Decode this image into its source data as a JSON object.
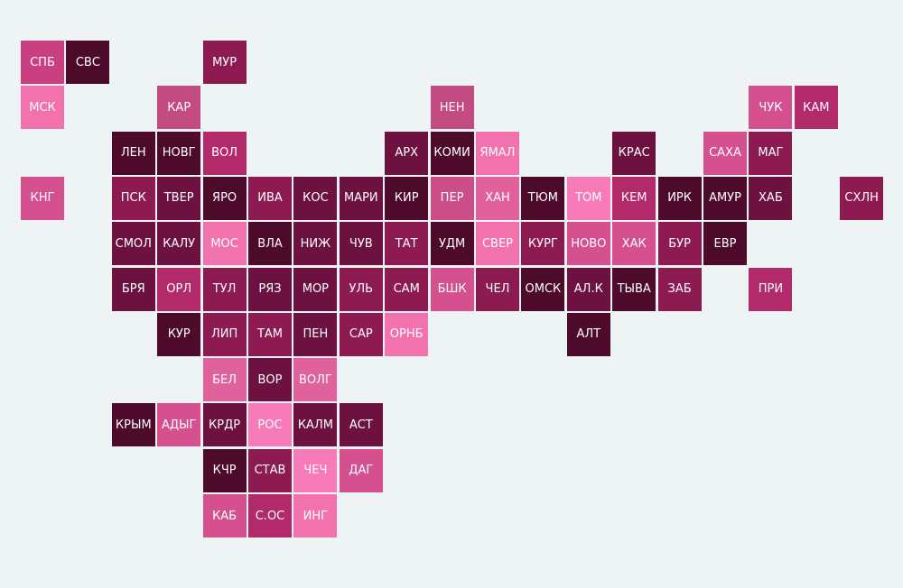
{
  "tile_map": {
    "rows": [
      [
        {
          "label": "СПБ",
          "color": "#c93f7f"
        },
        {
          "label": "СВС",
          "color": "#4d0a2a"
        },
        null,
        null,
        {
          "label": "МУР",
          "color": "#8e1a52"
        }
      ],
      [
        {
          "label": "МСК",
          "color": "#f272ae"
        },
        null,
        null,
        {
          "label": "КАР",
          "color": "#c44a82"
        },
        null,
        null,
        null,
        null,
        null,
        {
          "label": "НЕН",
          "color": "#c44a82"
        },
        null,
        null,
        null,
        null,
        null,
        null,
        {
          "label": "ЧУК",
          "color": "#d4508e"
        },
        {
          "label": "КАМ",
          "color": "#b22a6a"
        }
      ],
      [
        null,
        null,
        {
          "label": "ЛЕН",
          "color": "#4d0a2a"
        },
        {
          "label": "НОВГ",
          "color": "#4d0a2a"
        },
        {
          "label": "ВОЛ",
          "color": "#b22a6a"
        },
        null,
        null,
        null,
        {
          "label": "АРХ",
          "color": "#6d1240"
        },
        {
          "label": "КОМИ",
          "color": "#4d0a2a"
        },
        {
          "label": "ЯМАЛ",
          "color": "#f272ae"
        },
        null,
        null,
        {
          "label": "КРАС",
          "color": "#6d1240"
        },
        null,
        {
          "label": "САХА",
          "color": "#d4508e"
        },
        {
          "label": "МАГ",
          "color": "#8e1a52"
        }
      ],
      [
        {
          "label": "КНГ",
          "color": "#d4508e"
        },
        null,
        {
          "label": "ПСК",
          "color": "#8e1a52"
        },
        {
          "label": "ТВЕР",
          "color": "#6d1240"
        },
        {
          "label": "ЯРО",
          "color": "#4d0a2a"
        },
        {
          "label": "ИВА",
          "color": "#8e1a52"
        },
        {
          "label": "КОС",
          "color": "#6d1240"
        },
        {
          "label": "МАРИ",
          "color": "#6d1240"
        },
        {
          "label": "КИР",
          "color": "#4d0a2a"
        },
        {
          "label": "ПЕР",
          "color": "#cc4e88"
        },
        {
          "label": "ХАН",
          "color": "#e0619c"
        },
        {
          "label": "ТЮМ",
          "color": "#4d0a2a"
        },
        {
          "label": "ТОМ",
          "color": "#f77bb8"
        },
        {
          "label": "КЕМ",
          "color": "#b22a6a"
        },
        {
          "label": "ИРК",
          "color": "#4d0a2a"
        },
        {
          "label": "АМУР",
          "color": "#4d0a2a"
        },
        {
          "label": "ХАБ",
          "color": "#6d1240"
        },
        null,
        {
          "label": "СХЛН",
          "color": "#8e1a52"
        }
      ],
      [
        null,
        null,
        {
          "label": "СМОЛ",
          "color": "#6d1240"
        },
        {
          "label": "КАЛУ",
          "color": "#6d1240"
        },
        {
          "label": "МОС",
          "color": "#f272ae"
        },
        {
          "label": "ВЛА",
          "color": "#4d0a2a"
        },
        {
          "label": "НИЖ",
          "color": "#6d1240"
        },
        {
          "label": "ЧУВ",
          "color": "#6d1240"
        },
        {
          "label": "ТАТ",
          "color": "#8e1a52"
        },
        {
          "label": "УДМ",
          "color": "#4d0a2a"
        },
        {
          "label": "СВЕР",
          "color": "#f272ae"
        },
        {
          "label": "КУРГ",
          "color": "#8e1a52"
        },
        {
          "label": "НОВО",
          "color": "#d4508e"
        },
        {
          "label": "ХАК",
          "color": "#d4508e"
        },
        {
          "label": "БУР",
          "color": "#8e1a52"
        },
        {
          "label": "ЕВР",
          "color": "#4d0a2a"
        }
      ],
      [
        null,
        null,
        {
          "label": "БРЯ",
          "color": "#6d1240"
        },
        {
          "label": "ОРЛ",
          "color": "#b22a6a"
        },
        {
          "label": "ТУЛ",
          "color": "#8e1a52"
        },
        {
          "label": "РЯЗ",
          "color": "#6d1240"
        },
        {
          "label": "МОР",
          "color": "#6d1240"
        },
        {
          "label": "УЛЬ",
          "color": "#8e1a52"
        },
        {
          "label": "САМ",
          "color": "#8e1a52"
        },
        {
          "label": "БШК",
          "color": "#d4508e"
        },
        {
          "label": "ЧЕЛ",
          "color": "#8e1a52"
        },
        {
          "label": "ОМСК",
          "color": "#4d0a2a"
        },
        {
          "label": "АЛ.К",
          "color": "#6d1240"
        },
        {
          "label": "ТЫВА",
          "color": "#4d0a2a"
        },
        {
          "label": "ЗАБ",
          "color": "#8e1a52"
        },
        null,
        {
          "label": "ПРИ",
          "color": "#b22a6a"
        }
      ],
      [
        null,
        null,
        null,
        {
          "label": "КУР",
          "color": "#4d0a2a"
        },
        {
          "label": "ЛИП",
          "color": "#8e1a52"
        },
        {
          "label": "ТАМ",
          "color": "#8e1a52"
        },
        {
          "label": "ПЕН",
          "color": "#6d1240"
        },
        {
          "label": "САР",
          "color": "#8e1a52"
        },
        {
          "label": "ОРНБ",
          "color": "#f272ae"
        },
        null,
        null,
        null,
        {
          "label": "АЛТ",
          "color": "#4d0a2a"
        }
      ],
      [
        null,
        null,
        null,
        null,
        {
          "label": "БЕЛ",
          "color": "#e0619c"
        },
        {
          "label": "ВОР",
          "color": "#6d1240"
        },
        {
          "label": "ВОЛГ",
          "color": "#e0619c"
        }
      ],
      [
        null,
        null,
        {
          "label": "КРЫМ",
          "color": "#4d0a2a"
        },
        {
          "label": "АДЫГ",
          "color": "#d4508e"
        },
        {
          "label": "КРДР",
          "color": "#6d1240"
        },
        {
          "label": "РОС",
          "color": "#f77bb8"
        },
        {
          "label": "КАЛМ",
          "color": "#6d1240"
        },
        {
          "label": "АСТ",
          "color": "#6d1240"
        }
      ],
      [
        null,
        null,
        null,
        null,
        {
          "label": "КЧР",
          "color": "#4d0a2a"
        },
        {
          "label": "СТАВ",
          "color": "#8e1a52"
        },
        {
          "label": "ЧЕЧ",
          "color": "#f77bb8"
        },
        {
          "label": "ДАГ",
          "color": "#d4508e"
        }
      ],
      [
        null,
        null,
        null,
        null,
        {
          "label": "КАБ",
          "color": "#d4508e"
        },
        {
          "label": "С.ОС",
          "color": "#b22a6a"
        },
        {
          "label": "ИНГ",
          "color": "#f272ae"
        }
      ]
    ]
  }
}
